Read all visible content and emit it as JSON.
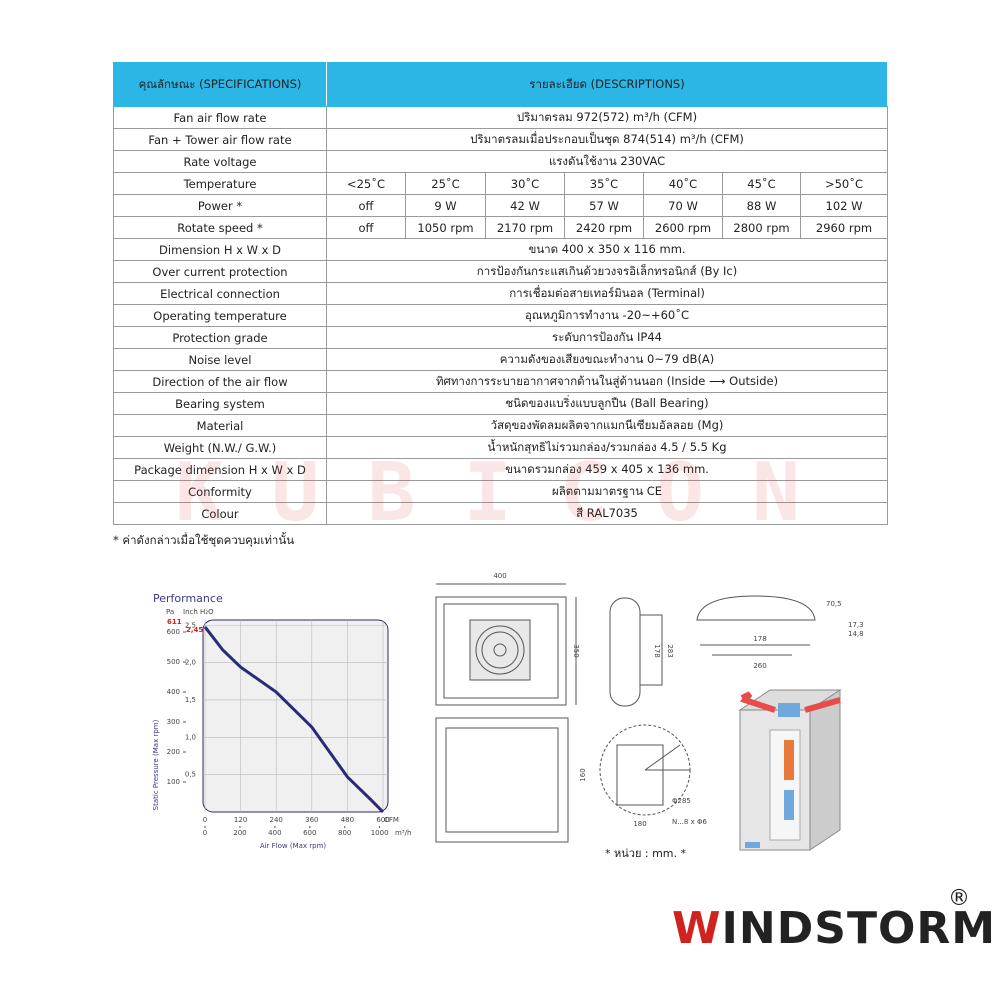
{
  "table": {
    "header": [
      "คุณลักษณะ (SPECIFICATIONS)",
      "รายละเอียด (DESCRIPTIONS)"
    ],
    "rows": [
      {
        "label": "Fan air flow rate",
        "description": "ปริมาตรลม 972(572) m³/h (CFM)"
      },
      {
        "label": "Fan + Tower air flow rate",
        "description": "ปริมาตรลมเมื่อประกอบเป็นชุด 874(514) m³/h (CFM)"
      },
      {
        "label": "Rate voltage",
        "description": "แรงดันใช้งาน 230VAC"
      },
      {
        "label": "Temperature",
        "cells": [
          "<25˚C",
          "25˚C",
          "30˚C",
          "35˚C",
          "40˚C",
          "45˚C",
          ">50˚C"
        ]
      },
      {
        "label": "Power *",
        "cells": [
          "off",
          "9 W",
          "42 W",
          "57 W",
          "70 W",
          "88 W",
          "102 W"
        ]
      },
      {
        "label": "Rotate speed *",
        "cells": [
          "off",
          "1050 rpm",
          "2170 rpm",
          "2420 rpm",
          "2600 rpm",
          "2800 rpm",
          "2960 rpm"
        ]
      },
      {
        "label": "Dimension H x W x D",
        "description": "ขนาด 400 x 350 x 116 mm."
      },
      {
        "label": "Over current protection",
        "description": "การป้องกันกระแสเกินด้วยวงจรอิเล็กทรอนิกส์ (By Ic)"
      },
      {
        "label": "Electrical connection",
        "description": "การเชื่อมต่อสายเทอร์มินอล (Terminal)"
      },
      {
        "label": "Operating temperature",
        "description": "อุณหภูมิการทำงาน -20~+60˚C"
      },
      {
        "label": "Protection grade",
        "description": "ระดับการป้องกัน IP44"
      },
      {
        "label": "Noise level",
        "description": "ความดังของเสียงขณะทำงาน 0~79 dB(A)"
      },
      {
        "label": "Direction of the air flow",
        "description": "ทิศทางการระบายอากาศจากด้านในสู่ด้านนอก (Inside ⟶ Outside)"
      },
      {
        "label": "Bearing system",
        "description": "ชนิดของแบริ่งแบบลูกปืน (Ball Bearing)"
      },
      {
        "label": "Material",
        "description": "วัสดุของพัดลมผลิตจากแมกนีเซียมอัลลอย (Mg)"
      },
      {
        "label": "Weight (N.W./ G.W.)",
        "description": "น้ำหนักสุทธิไม่รวมกล่อง/รวมกล่อง 4.5 / 5.5 Kg"
      },
      {
        "label": "Package dimension H x W x D",
        "description": "ขนาดรวมกล่อง 459 x 405 x 136 mm."
      },
      {
        "label": "Conformity",
        "description": "ผลิตตามมาตรฐาน CE"
      },
      {
        "label": "Colour",
        "description": "สี RAL7035"
      }
    ]
  },
  "footnote": "* ค่าดังกล่าวเมื่อใช้ชุดควบคุมเท่านั้น",
  "watermark": "KUBICON",
  "performance": {
    "title": "Performance",
    "unit_pa": "Pa",
    "unit_inch": "Inch H₂O",
    "y_label": "Static Pressure (Max rpm)",
    "x_label": "Air Flow (Max rpm)",
    "unit_cfm": "CFM",
    "unit_m3h": "m³/h",
    "max_pa": 611,
    "max_inch": {
      "value": 2.45,
      "label": "2,45"
    },
    "pa_ticks": [
      100,
      200,
      300,
      400,
      500,
      600
    ],
    "inch_ticks": [
      {
        "value": 0.5,
        "label": "0,5"
      },
      {
        "value": 1.0,
        "label": "1,0"
      },
      {
        "value": 1.5,
        "label": "1,5"
      },
      {
        "value": 2.0,
        "label": "2,0"
      },
      {
        "value": 2.5,
        "label": "2,5"
      }
    ],
    "cfm_ticks": [
      0,
      120,
      240,
      360,
      480,
      600
    ],
    "m3h_ticks": [
      0,
      200,
      400,
      600,
      800,
      1000
    ],
    "curve": {
      "cfm": [
        0,
        60,
        120,
        240,
        360,
        480,
        560,
        600
      ],
      "pa": [
        617,
        540,
        483,
        400,
        283,
        117,
        40,
        0
      ]
    }
  },
  "drawing_labels": {
    "width": "400",
    "height": "350",
    "side_a": "178",
    "side_b": "283",
    "hood_h": "70,5",
    "hood_a": "17,3",
    "hood_b": "14,8",
    "hood_w1": "178",
    "hood_w2": "260",
    "cut_h": "160",
    "cut_w": "180",
    "dia": "Φ285",
    "holes": "N...8 x Φ6",
    "unit": "* หน่วย : mm. *"
  },
  "brand": {
    "name": "WINDSTORM",
    "mark": "®"
  }
}
